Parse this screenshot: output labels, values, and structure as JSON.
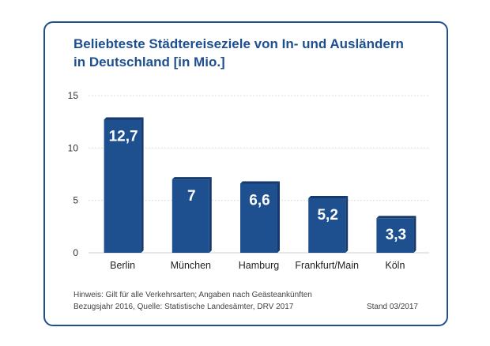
{
  "chart_data": {
    "type": "bar",
    "title_lines": [
      "Beliebteste Städtereiseziele von In- und Ausländern",
      "in Deutschland [in Mio.]"
    ],
    "categories": [
      "Berlin",
      "München",
      "Hamburg",
      "Frankfurt/Main",
      "Köln"
    ],
    "values": [
      12.7,
      7,
      6.6,
      5.2,
      3.3
    ],
    "value_labels": [
      "12,7",
      "7",
      "6,6",
      "5,2",
      "3,3"
    ],
    "yticks": [
      0,
      5,
      10,
      15
    ],
    "ylim": [
      0,
      15
    ],
    "grid": true,
    "xlabel": "",
    "ylabel": ""
  },
  "footer": {
    "note1": "Hinweis: Gilt für alle Verkehrsarten; Angaben nach Geästeankünften",
    "note2": "Bezugsjahr 2016, Quelle: Statistische Landesämter, DRV 2017",
    "stand": "Stand 03/2017"
  },
  "colors": {
    "bar": "#1e4f8f",
    "bar_side": "#153a6b",
    "frame": "#1e4f8f",
    "title": "#1e4f8f"
  }
}
